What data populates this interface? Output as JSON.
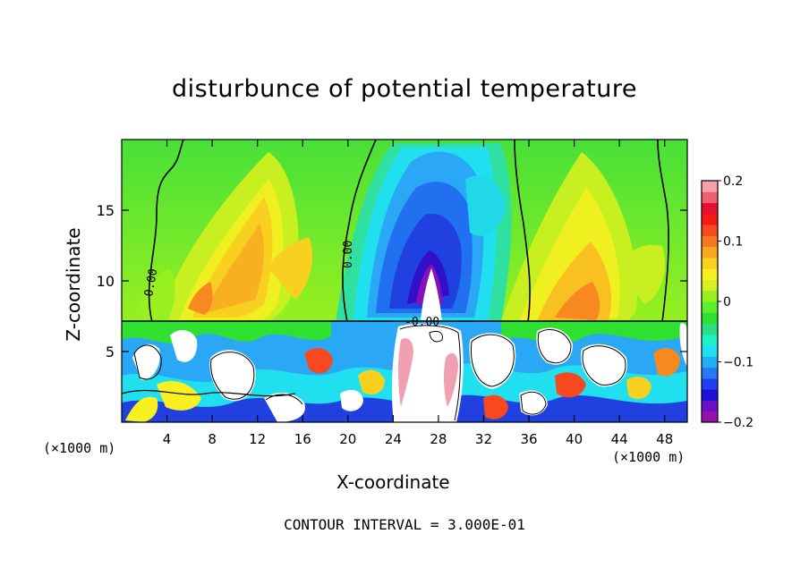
{
  "chart_data": {
    "type": "heatmap",
    "title": "disturbunce of potential temperature",
    "xlabel": "X-coordinate",
    "ylabel": "Z-coordinate",
    "x_unit": "(×1000 m)",
    "z_unit": "(×1000 m)",
    "xlim": [
      0,
      50
    ],
    "ylim": [
      0,
      20
    ],
    "x_ticks": [
      4,
      8,
      12,
      16,
      20,
      24,
      28,
      32,
      36,
      40,
      44,
      48
    ],
    "y_ticks": [
      5,
      10,
      15
    ],
    "colorbar": {
      "range": [
        -0.2,
        0.2
      ],
      "tick_labels": [
        "0.2",
        "0.1",
        "0",
        "−0.1",
        "−0.2"
      ],
      "tick_values": [
        0.2,
        0.1,
        0,
        -0.1,
        -0.2
      ],
      "colors": [
        "#9a0fb0",
        "#6a10c8",
        "#1f10d8",
        "#2040f0",
        "#2a78f5",
        "#20b0f0",
        "#20e0f0",
        "#20f0c8",
        "#2ae080",
        "#30e030",
        "#5af030",
        "#98f020",
        "#d8f020",
        "#f8f020",
        "#f8d020",
        "#f8a820",
        "#f87820",
        "#f84820",
        "#f81818",
        "#e81030",
        "#f06070",
        "#f8a0a8"
      ]
    },
    "contour_labels": [
      "0.00",
      "0.00",
      "-0.00"
    ],
    "footnote": "CONTOUR INTERVAL = 3.000E-01"
  },
  "labels": {
    "y_ticks": [
      "5",
      "10",
      "15"
    ],
    "x_ticks": [
      "4",
      "8",
      "12",
      "16",
      "20",
      "24",
      "28",
      "32",
      "36",
      "40",
      "44",
      "48"
    ],
    "unit_left": "(×1000 m)",
    "unit_right": "(×1000 m)"
  }
}
